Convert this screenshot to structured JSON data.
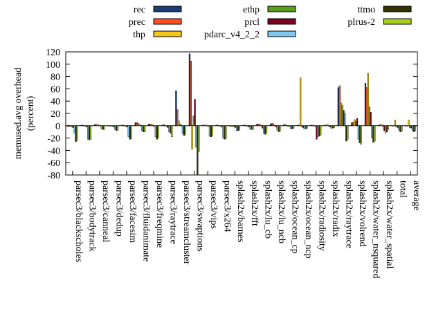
{
  "chart_data": {
    "type": "bar",
    "ylabel": "memused.avg overhead\n(percent)",
    "ylim": [
      -80,
      120
    ],
    "yticks": [
      -80,
      -60,
      -40,
      -20,
      0,
      20,
      40,
      60,
      80,
      100,
      120
    ],
    "legend_position": "top",
    "categories": [
      "parsec3/blackscholes",
      "parsec3/bodytrack",
      "parsec3/canneal",
      "parsec3/dedup",
      "parsec3/facesim",
      "parsec3/fluidanimate",
      "parsec3/freqmine",
      "parsec3/raytrace",
      "parsec3/streamcluster",
      "parsec3/swaptions",
      "parsec3/vips",
      "parsec3/x264",
      "splash2x/barnes",
      "splash2x/fft",
      "splash2x/lu_cb",
      "splash2x/lu_ncb",
      "splash2x/ocean_cp",
      "splash2x/ocean_ncp",
      "splash2x/radiosity",
      "splash2x/radix",
      "splash2x/raytrace",
      "splash2x/volrend",
      "splash2x/water_nsquared",
      "splash2x/water_spatial",
      "total",
      "average"
    ],
    "series": [
      {
        "name": "rec",
        "color": "#1f3b73",
        "values": [
          -1,
          1,
          2,
          0,
          1,
          5,
          3,
          1,
          57,
          117,
          1,
          1,
          -1,
          1,
          3,
          3,
          2,
          1,
          1,
          1,
          62,
          5,
          69,
          1,
          0,
          0
        ]
      },
      {
        "name": "prec",
        "color": "#ff4d1f",
        "values": [
          -1,
          1,
          2,
          0,
          1,
          5,
          3,
          2,
          26,
          105,
          1,
          1,
          -1,
          1,
          3,
          4,
          2,
          1,
          1,
          1,
          65,
          6,
          62,
          2,
          0,
          0
        ]
      },
      {
        "name": "thp",
        "color": "#f5c518",
        "values": [
          -1,
          0,
          2,
          0,
          0,
          4,
          2,
          0,
          8,
          -38,
          1,
          0,
          -1,
          0,
          2,
          3,
          0,
          78,
          0,
          2,
          37,
          10,
          85,
          2,
          9,
          9
        ]
      },
      {
        "name": "ethp",
        "color": "#5a9e1e",
        "values": [
          -2,
          -1,
          1,
          -1,
          -1,
          2,
          1,
          -1,
          3,
          16,
          0,
          -1,
          -2,
          -1,
          1,
          1,
          -1,
          -1,
          -1,
          0,
          33,
          7,
          31,
          -1,
          -2,
          -3
        ]
      },
      {
        "name": "prcl",
        "color": "#800020",
        "values": [
          -3,
          -2,
          0,
          -2,
          -2,
          1,
          -1,
          -3,
          1,
          43,
          -1,
          -2,
          -3,
          -2,
          -4,
          -2,
          -1,
          -3,
          -22,
          -2,
          25,
          12,
          22,
          -8,
          -3,
          -4
        ]
      },
      {
        "name": "pdarc_v4_2_2",
        "color": "#7ec8f2",
        "values": [
          -12,
          -22,
          -5,
          -6,
          -18,
          -8,
          -18,
          -10,
          -13,
          -35,
          -17,
          -20,
          -8,
          -6,
          -12,
          -7,
          -5,
          -5,
          -18,
          -4,
          20,
          -22,
          -20,
          -12,
          -7,
          -8
        ]
      },
      {
        "name": "ttmo",
        "color": "#333300",
        "values": [
          -26,
          -23,
          -6,
          -8,
          -22,
          -10,
          -22,
          -12,
          -16,
          -80,
          -18,
          -22,
          -8,
          -6,
          -14,
          -10,
          -5,
          -5,
          -17,
          -4,
          -25,
          -28,
          -27,
          -10,
          -10,
          -10
        ]
      },
      {
        "name": "plrus-2",
        "color": "#a6d01a",
        "values": [
          -24,
          -22,
          -6,
          -7,
          -21,
          -10,
          -20,
          -18,
          -14,
          -42,
          -16,
          -21,
          -7,
          -6,
          -12,
          -9,
          -4,
          -4,
          -15,
          -3,
          -22,
          -30,
          -25,
          -6,
          -9,
          -8
        ]
      }
    ]
  }
}
